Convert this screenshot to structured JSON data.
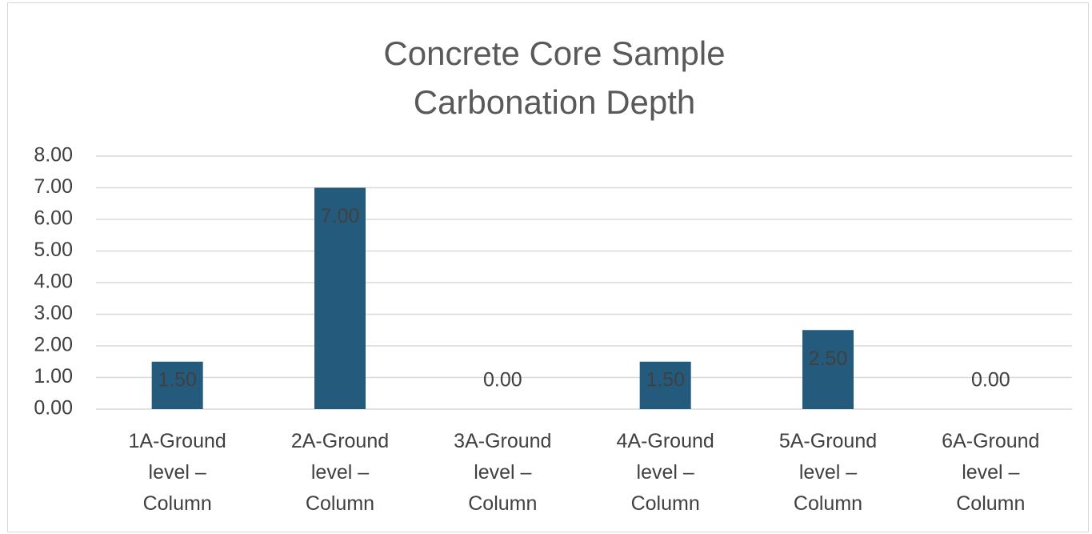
{
  "chart_data": {
    "type": "bar",
    "title": "Concrete Core Sample Carbonation Depth",
    "categories": [
      "1A-Ground level – Column",
      "2A-Ground level – Column",
      "3A-Ground level – Column",
      "4A-Ground level – Column",
      "5A-Ground level – Column",
      "6A-Ground level – Column"
    ],
    "values": [
      1.5,
      7,
      0,
      1.5,
      2.5,
      0
    ],
    "value_labels": [
      "1.50",
      "7.00",
      "0.00",
      "1.50",
      "2.50",
      "0.00"
    ],
    "color": "#245b7c",
    "ylim": [
      0,
      8
    ],
    "yticks": [
      {
        "value": 0,
        "label": "0.00"
      },
      {
        "value": 1,
        "label": "1.00"
      },
      {
        "value": 2,
        "label": "2.00"
      },
      {
        "value": 3,
        "label": "3.00"
      },
      {
        "value": 4,
        "label": "4.00"
      },
      {
        "value": 5,
        "label": "5.00"
      },
      {
        "value": 6,
        "label": "6.00"
      },
      {
        "value": 7,
        "label": "7.00"
      },
      {
        "value": 8,
        "label": "8.00"
      }
    ],
    "grid": true
  }
}
